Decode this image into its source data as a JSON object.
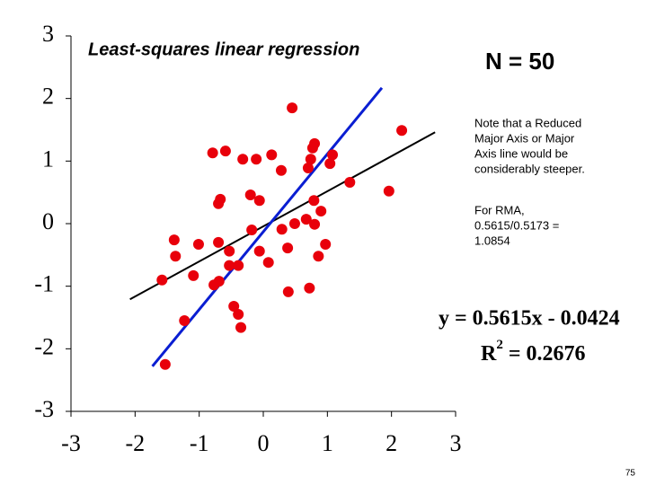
{
  "chart_data": {
    "type": "scatter",
    "title": "Least-squares linear regression",
    "n_label": "N = 50",
    "note": [
      "Note that a Reduced",
      "Major Axis or Major",
      "Axis line would be",
      "considerably steeper."
    ],
    "rma_note": [
      "For RMA,",
      "0.5615/0.5173 =",
      "1.0854"
    ],
    "equation": "y = 0.5615x - 0.0424",
    "r2_label": {
      "base": "R",
      "sup": "2",
      "rest": " = 0.2676"
    },
    "page_number": "75",
    "xlim": [
      -3,
      3
    ],
    "ylim": [
      -3,
      3
    ],
    "xticks": [
      -3,
      -2,
      -1,
      0,
      1,
      2,
      3
    ],
    "yticks": [
      -3,
      -2,
      -1,
      0,
      1,
      2,
      3
    ],
    "color": "#e8000b",
    "x": [
      0.45,
      2.16,
      -0.79,
      -0.59,
      -0.32,
      -0.11,
      0.13,
      0.28,
      0.8,
      0.77,
      0.74,
      0.7,
      1.08,
      1.04,
      1.35,
      1.96,
      -0.2,
      -0.06,
      -0.67,
      -0.7,
      0.79,
      0.9,
      0.67,
      0.49,
      0.8,
      0.29,
      -0.18,
      -1.39,
      -1.01,
      -0.7,
      0.97,
      -1.37,
      -0.53,
      -0.06,
      0.38,
      0.08,
      0.86,
      -0.53,
      -0.39,
      -1.09,
      -1.58,
      -0.69,
      -0.77,
      0.39,
      0.72,
      -0.46,
      -0.39,
      -1.23,
      -0.35,
      -1.53
    ],
    "y": [
      1.85,
      1.49,
      1.13,
      1.16,
      1.03,
      1.03,
      1.1,
      0.85,
      1.28,
      1.21,
      1.03,
      0.89,
      1.1,
      0.96,
      0.66,
      0.52,
      0.46,
      0.37,
      0.39,
      0.32,
      0.37,
      0.2,
      0.07,
      0.0,
      -0.01,
      -0.09,
      -0.1,
      -0.26,
      -0.33,
      -0.3,
      -0.33,
      -0.52,
      -0.44,
      -0.44,
      -0.39,
      -0.62,
      -0.52,
      -0.67,
      -0.67,
      -0.83,
      -0.9,
      -0.92,
      -0.98,
      -1.09,
      -1.03,
      -1.32,
      -1.45,
      -1.55,
      -1.66,
      -2.25
    ],
    "lines": [
      {
        "color": "#000000",
        "x": [
          -2.08,
          2.68
        ],
        "y": [
          -1.21,
          1.46
        ]
      },
      {
        "color": "#0a1ed2",
        "x": [
          -1.73,
          1.85
        ],
        "y": [
          -2.28,
          2.17
        ]
      }
    ]
  }
}
